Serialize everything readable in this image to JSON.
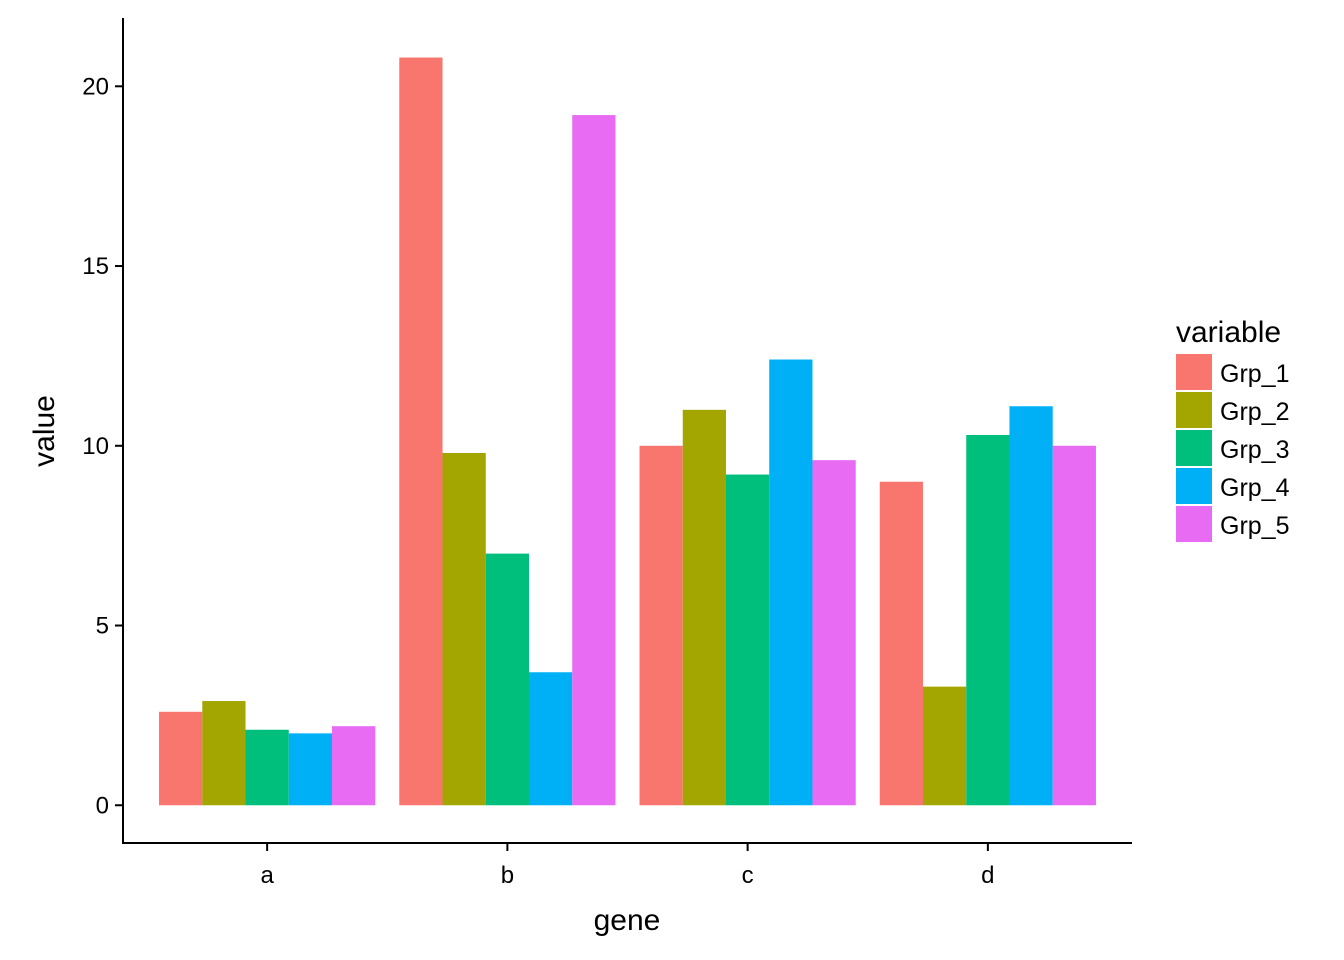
{
  "chart_data": {
    "type": "bar",
    "title": "",
    "xlabel": "gene",
    "ylabel": "value",
    "categories": [
      "a",
      "b",
      "c",
      "d"
    ],
    "ylim": [
      -1.05,
      21.9
    ],
    "yticks": [
      0,
      5,
      10,
      15,
      20
    ],
    "grid": false,
    "legend": {
      "title": "variable",
      "placement": "right"
    },
    "series": [
      {
        "name": "Grp_1",
        "color": "#F8766D",
        "values": [
          2.6,
          20.8,
          10.0,
          9.0
        ]
      },
      {
        "name": "Grp_2",
        "color": "#A3A500",
        "values": [
          2.9,
          9.8,
          11.0,
          3.3
        ]
      },
      {
        "name": "Grp_3",
        "color": "#00BF7D",
        "values": [
          2.1,
          7.0,
          9.2,
          10.3
        ]
      },
      {
        "name": "Grp_4",
        "color": "#00B0F6",
        "values": [
          2.0,
          3.7,
          12.4,
          11.1
        ]
      },
      {
        "name": "Grp_5",
        "color": "#E76BF3",
        "values": [
          2.2,
          19.2,
          9.6,
          10.0
        ]
      }
    ]
  }
}
